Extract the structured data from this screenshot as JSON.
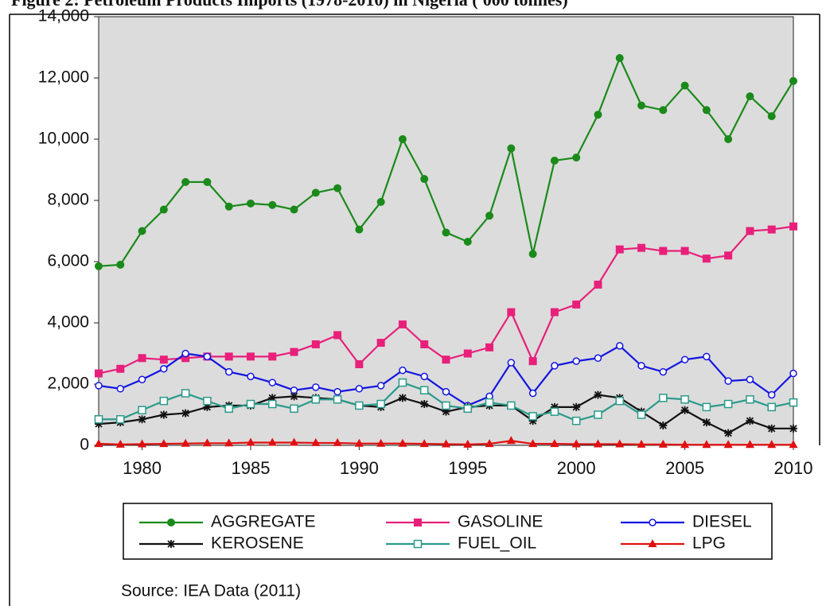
{
  "chart_data": {
    "type": "line",
    "title": "Figure 2: Petroleum Products Imports (1978-2010) in Nigeria ('000 tonnes)",
    "source": "Source: IEA Data (2011)",
    "x": [
      1978,
      1979,
      1980,
      1981,
      1982,
      1983,
      1984,
      1985,
      1986,
      1987,
      1988,
      1989,
      1990,
      1991,
      1992,
      1993,
      1994,
      1995,
      1996,
      1997,
      1998,
      1999,
      2000,
      2001,
      2002,
      2003,
      2004,
      2005,
      2006,
      2007,
      2008,
      2009,
      2010
    ],
    "xlim": [
      1978,
      2010
    ],
    "xticks": [
      1980,
      1985,
      1990,
      1995,
      2000,
      2005,
      2010
    ],
    "ylim": [
      0,
      14000
    ],
    "yticks": [
      0,
      {
        "value": 2000,
        "label": "2,000"
      },
      {
        "value": 4000,
        "label": "4,000"
      },
      {
        "value": 6000,
        "label": "6,000"
      },
      {
        "value": 8000,
        "label": "8,000"
      },
      {
        "value": 10000,
        "label": "10,000"
      },
      {
        "value": 12000,
        "label": "12,000"
      },
      {
        "value": 14000,
        "label": "14,000"
      }
    ],
    "grid": false,
    "series": [
      {
        "name": "AGGREGATE",
        "color": "#1a8a1a",
        "marker": "circle",
        "values": [
          5850,
          5900,
          7000,
          7700,
          8600,
          8600,
          7800,
          7900,
          7850,
          7700,
          8250,
          8400,
          7050,
          7950,
          10000,
          8700,
          6950,
          6650,
          7500,
          9700,
          6250,
          9300,
          9400,
          10800,
          12650,
          11100,
          10950,
          11750,
          10950,
          10000,
          11400,
          10750,
          11900
        ]
      },
      {
        "name": "GASOLINE",
        "color": "#e8207a",
        "marker": "square",
        "values": [
          2350,
          2500,
          2850,
          2800,
          2850,
          2900,
          2900,
          2900,
          2900,
          3050,
          3300,
          3600,
          2650,
          3350,
          3950,
          3300,
          2800,
          3000,
          3200,
          4350,
          2750,
          4350,
          4600,
          5250,
          6400,
          6450,
          6350,
          6350,
          6100,
          6200,
          7000,
          7050,
          7150
        ]
      },
      {
        "name": "DIESEL",
        "color": "#1414e0",
        "marker": "open-circle",
        "values": [
          1950,
          1850,
          2150,
          2500,
          3000,
          2900,
          2400,
          2250,
          2050,
          1800,
          1900,
          1750,
          1850,
          1950,
          2450,
          2250,
          1750,
          1300,
          1600,
          2700,
          1700,
          2600,
          2750,
          2850,
          3250,
          2600,
          2400,
          2800,
          2900,
          2100,
          2150,
          1650,
          2350
        ]
      },
      {
        "name": "KEROSENE",
        "color": "#111111",
        "marker": "asterisk",
        "values": [
          700,
          750,
          850,
          1000,
          1050,
          1250,
          1300,
          1300,
          1550,
          1600,
          1550,
          1500,
          1300,
          1250,
          1550,
          1350,
          1100,
          1250,
          1300,
          1300,
          800,
          1250,
          1250,
          1650,
          1550,
          1100,
          650,
          1150,
          750,
          400,
          800,
          550,
          550
        ]
      },
      {
        "name": "FUEL_OIL",
        "color": "#2a9a8a",
        "marker": "open-square",
        "values": [
          850,
          850,
          1150,
          1450,
          1700,
          1450,
          1200,
          1350,
          1350,
          1200,
          1500,
          1500,
          1300,
          1350,
          2050,
          1800,
          1300,
          1200,
          1400,
          1300,
          950,
          1100,
          800,
          1000,
          1450,
          1000,
          1550,
          1500,
          1250,
          1350,
          1500,
          1250,
          1400
        ]
      },
      {
        "name": "LPG",
        "color": "#e01010",
        "marker": "triangle",
        "values": [
          50,
          30,
          40,
          50,
          60,
          70,
          70,
          90,
          90,
          90,
          80,
          80,
          60,
          60,
          60,
          50,
          40,
          30,
          50,
          150,
          50,
          50,
          40,
          40,
          40,
          30,
          30,
          20,
          20,
          20,
          20,
          20,
          20
        ]
      }
    ]
  }
}
